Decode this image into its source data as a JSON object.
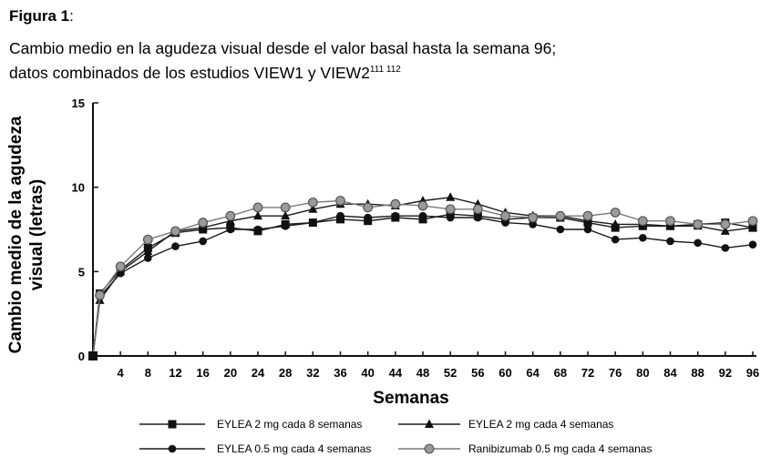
{
  "figure": {
    "label": "Figura 1",
    "label_suffix": ":",
    "caption_line1": "Cambio medio en la agudeza visual desde el valor basal hasta la semana 96;",
    "caption_line2": "datos combinados de los estudios VIEW1 y VIEW2",
    "caption_refs": "111 112"
  },
  "chart_data": {
    "type": "line",
    "xlabel": "Semanas",
    "ylabel_lines": [
      "Cambio medio de la agudeza",
      "visual (letras)"
    ],
    "xlim": [
      0,
      96
    ],
    "ylim": [
      0,
      15
    ],
    "x_ticks": [
      4,
      8,
      12,
      16,
      20,
      24,
      28,
      32,
      36,
      40,
      44,
      48,
      52,
      56,
      60,
      64,
      68,
      72,
      76,
      80,
      84,
      88,
      92,
      96
    ],
    "y_ticks": [
      0,
      5,
      10,
      15
    ],
    "grid": false,
    "legend_position": "bottom",
    "x": [
      0,
      1,
      4,
      8,
      12,
      16,
      20,
      24,
      28,
      32,
      36,
      40,
      44,
      48,
      52,
      56,
      60,
      64,
      68,
      72,
      76,
      80,
      84,
      88,
      92,
      96
    ],
    "series": [
      {
        "name": "EYLEA 2 mg cada 8 semanas",
        "marker": "square",
        "color": "#1a1a1a",
        "values": [
          0,
          3.7,
          5.1,
          6.4,
          7.3,
          7.5,
          7.6,
          7.4,
          7.8,
          7.9,
          8.1,
          8.0,
          8.2,
          8.1,
          8.4,
          8.3,
          8.1,
          8.2,
          8.2,
          7.9,
          7.6,
          7.7,
          7.7,
          7.8,
          7.9,
          7.6
        ]
      },
      {
        "name": "EYLEA 2 mg cada 4 semanas",
        "marker": "triangle",
        "color": "#1a1a1a",
        "values": [
          0,
          3.3,
          5.0,
          6.2,
          7.4,
          7.6,
          8.0,
          8.3,
          8.3,
          8.7,
          9.0,
          9.0,
          8.9,
          9.2,
          9.4,
          9.0,
          8.5,
          8.3,
          8.3,
          8.0,
          7.8,
          7.8,
          7.7,
          7.7,
          7.4,
          7.6
        ]
      },
      {
        "name": "EYLEA 0.5 mg cada 4 semanas",
        "marker": "circle",
        "color": "#1a1a1a",
        "values": [
          0,
          3.5,
          4.9,
          5.8,
          6.5,
          6.8,
          7.5,
          7.5,
          7.7,
          7.9,
          8.3,
          8.2,
          8.3,
          8.3,
          8.2,
          8.2,
          7.9,
          7.8,
          7.5,
          7.5,
          6.9,
          7.0,
          6.8,
          6.7,
          6.4,
          6.6
        ]
      },
      {
        "name": "Ranibizumab 0.5 mg cada 4 semanas",
        "marker": "circle-gray",
        "color": "#7a7a7a",
        "values": [
          0,
          3.6,
          5.3,
          6.9,
          7.4,
          7.9,
          8.3,
          8.8,
          8.8,
          9.1,
          9.2,
          8.8,
          9.0,
          8.9,
          8.7,
          8.7,
          8.3,
          8.2,
          8.3,
          8.3,
          8.5,
          8.0,
          8.0,
          7.8,
          7.8,
          8.0
        ]
      }
    ]
  }
}
